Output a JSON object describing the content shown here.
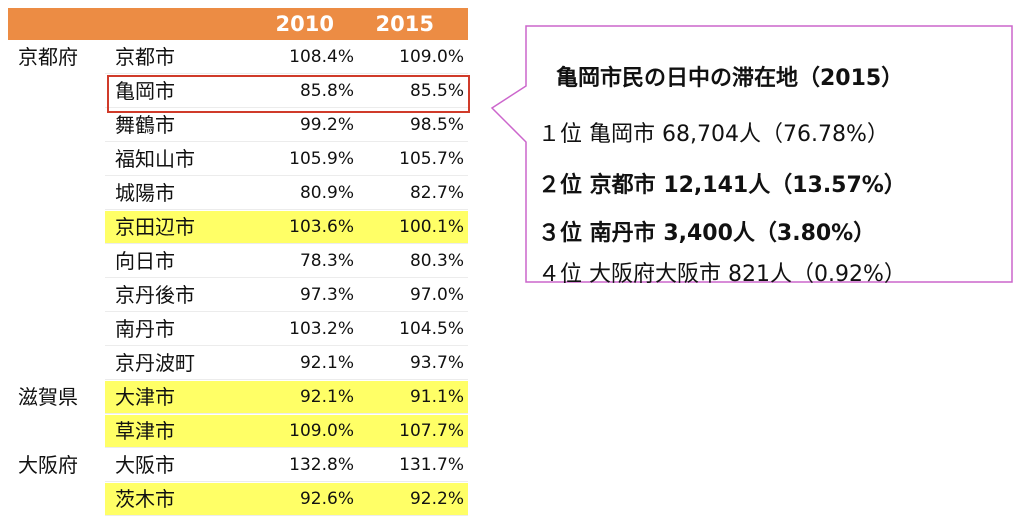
{
  "table": {
    "headers": {
      "y2010": "2010",
      "y2015": "2015"
    },
    "rows": [
      {
        "pref": "京都府",
        "city": "京都市",
        "v2010": "108.4%",
        "v2015": "109.0%",
        "highlight": false
      },
      {
        "pref": "",
        "city": "亀岡市",
        "v2010": "85.8%",
        "v2015": "85.5%",
        "highlight": false
      },
      {
        "pref": "",
        "city": "舞鶴市",
        "v2010": "99.2%",
        "v2015": "98.5%",
        "highlight": false
      },
      {
        "pref": "",
        "city": "福知山市",
        "v2010": "105.9%",
        "v2015": "105.7%",
        "highlight": false
      },
      {
        "pref": "",
        "city": "城陽市",
        "v2010": "80.9%",
        "v2015": "82.7%",
        "highlight": false
      },
      {
        "pref": "",
        "city": "京田辺市",
        "v2010": "103.6%",
        "v2015": "100.1%",
        "highlight": true
      },
      {
        "pref": "",
        "city": "向日市",
        "v2010": "78.3%",
        "v2015": "80.3%",
        "highlight": false
      },
      {
        "pref": "",
        "city": "京丹後市",
        "v2010": "97.3%",
        "v2015": "97.0%",
        "highlight": false
      },
      {
        "pref": "",
        "city": "南丹市",
        "v2010": "103.2%",
        "v2015": "104.5%",
        "highlight": false
      },
      {
        "pref": "",
        "city": "京丹波町",
        "v2010": "92.1%",
        "v2015": "93.7%",
        "highlight": false
      },
      {
        "pref": "滋賀県",
        "city": "大津市",
        "v2010": "92.1%",
        "v2015": "91.1%",
        "highlight": true
      },
      {
        "pref": "",
        "city": "草津市",
        "v2010": "109.0%",
        "v2015": "107.7%",
        "highlight": true
      },
      {
        "pref": "大阪府",
        "city": "大阪市",
        "v2010": "132.8%",
        "v2015": "131.7%",
        "highlight": false
      },
      {
        "pref": "",
        "city": "茨木市",
        "v2010": "92.6%",
        "v2015": "92.2%",
        "highlight": true
      }
    ],
    "header_color": "#ec8c44",
    "highlight_color": "#ffff66",
    "box_color": "#d03b2a"
  },
  "callout": {
    "title": "亀岡市民の日中の滞在地（2015）",
    "ranks": [
      {
        "text": "１位 亀岡市 68,704人（76.78%）",
        "bold": false
      },
      {
        "text": "２位 京都市 12,141人（13.57%）",
        "bold": true
      },
      {
        "text": "３位 南丹市 3,400人（3.80%）",
        "bold": true
      },
      {
        "text": "４位 大阪府大阪市 821人（0.92%）",
        "bold": false
      }
    ],
    "border_color": "#cc66cc"
  }
}
